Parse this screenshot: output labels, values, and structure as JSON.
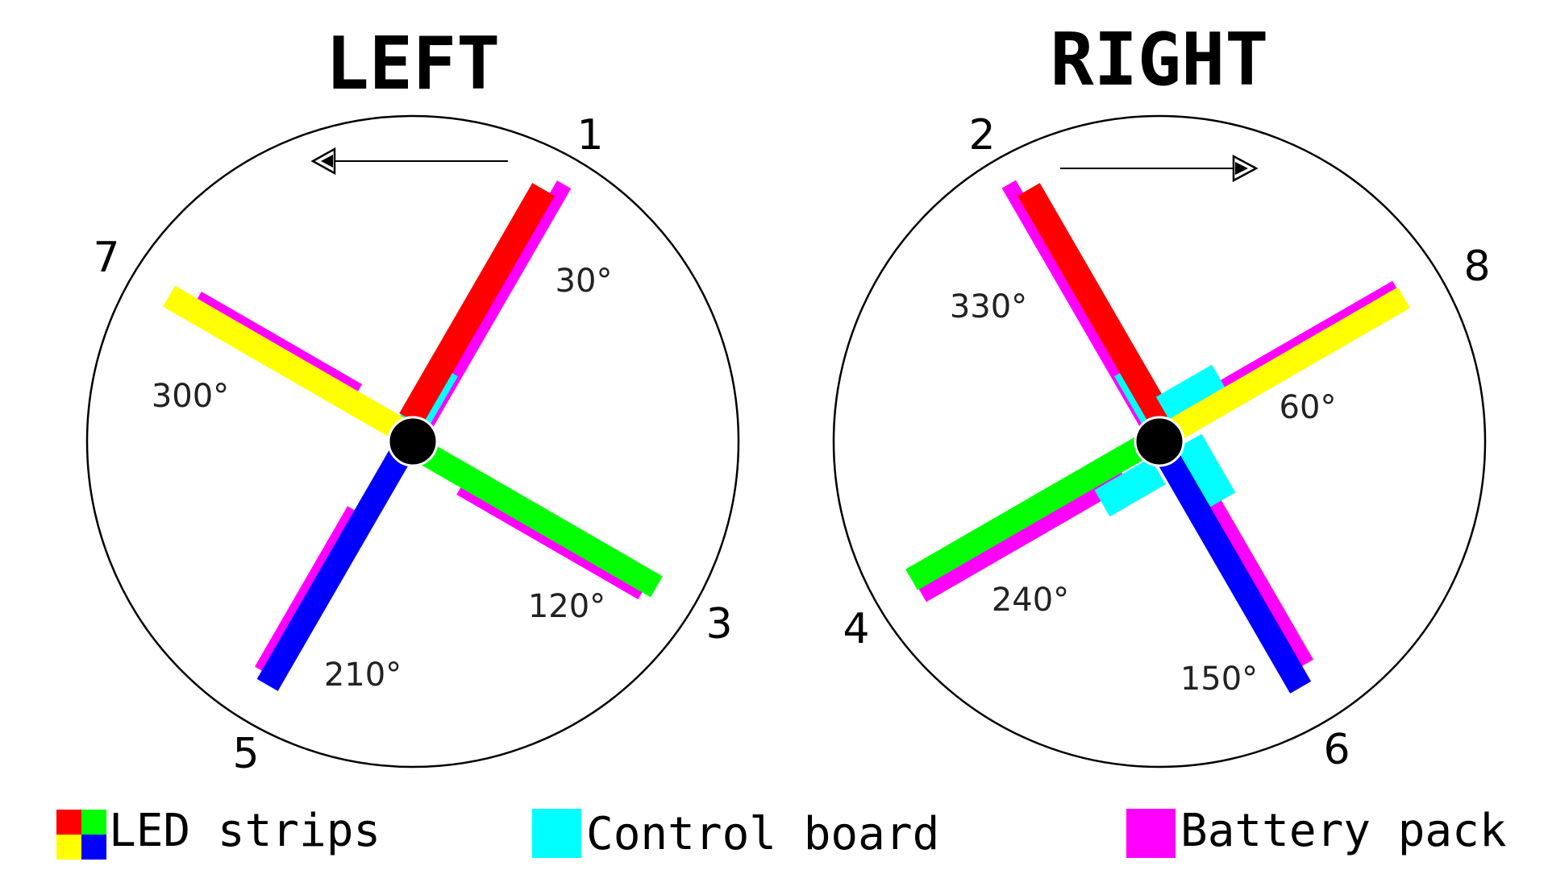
{
  "colors": {
    "led_red": "#ff0000",
    "led_yellow": "#ffff00",
    "led_green": "#00ff00",
    "led_blue": "#0000ff",
    "control_board": "#00ffff",
    "battery_pack": "#ff00ff",
    "outline": "#000000",
    "background": "#ffffff"
  },
  "left": {
    "title": "LEFT",
    "rotation_direction": "counterclockwise",
    "arms": [
      {
        "number": "1",
        "angle": "30°",
        "led_color": "led_red"
      },
      {
        "number": "3",
        "angle": "120°",
        "led_color": "led_green"
      },
      {
        "number": "5",
        "angle": "210°",
        "led_color": "led_blue"
      },
      {
        "number": "7",
        "angle": "300°",
        "led_color": "led_yellow"
      }
    ]
  },
  "right": {
    "title": "RIGHT",
    "rotation_direction": "clockwise",
    "arms": [
      {
        "number": "2",
        "angle": "330°",
        "led_color": "led_red"
      },
      {
        "number": "8",
        "angle": "60°",
        "led_color": "led_yellow"
      },
      {
        "number": "6",
        "angle": "150°",
        "led_color": "led_blue"
      },
      {
        "number": "4",
        "angle": "240°",
        "led_color": "led_green"
      }
    ]
  },
  "legend": {
    "led_label": "LED strips",
    "control_label": "Control board",
    "battery_label": "Battery pack"
  }
}
